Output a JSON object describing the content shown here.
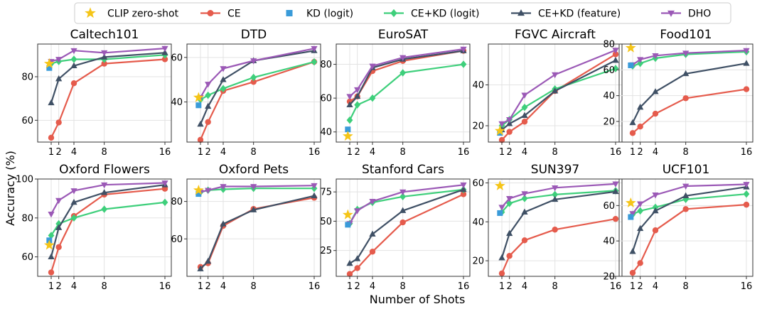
{
  "figure": {
    "ylabel": "Accuracy (%)",
    "xlabel": "Number of Shots",
    "x_ticks": [
      1,
      2,
      4,
      8,
      16
    ]
  },
  "legend": [
    {
      "key": "clip",
      "name": "CLIP zero-shot",
      "color": "#F5C518",
      "marker": "star"
    },
    {
      "key": "ce",
      "name": "CE",
      "color": "#E55B4C",
      "marker": "circle"
    },
    {
      "key": "kd",
      "name": "KD (logit)",
      "color": "#3A9BD9",
      "marker": "square"
    },
    {
      "key": "cekd",
      "name": "CE+KD (logit)",
      "color": "#3ECF7B",
      "marker": "diamond"
    },
    {
      "key": "cekdf",
      "name": "CE+KD (feature)",
      "color": "#3F5065",
      "marker": "triangle-up"
    },
    {
      "key": "dho",
      "name": "DHO",
      "color": "#9B59B6",
      "marker": "triangle-down"
    }
  ],
  "chart_data": [
    {
      "type": "line",
      "title": "Caltech101",
      "ylim": [
        50,
        95
      ],
      "yticks": [
        60,
        80
      ],
      "x": [
        1,
        2,
        4,
        8,
        16
      ],
      "clip": 86,
      "kd": 84,
      "series": {
        "ce": [
          52,
          59,
          77,
          86,
          88
        ],
        "cekd": [
          86,
          87,
          88,
          88,
          90
        ],
        "cekdf": [
          68,
          79,
          85,
          89,
          91
        ],
        "dho": [
          87,
          88,
          92,
          91,
          93
        ]
      }
    },
    {
      "type": "line",
      "title": "DTD",
      "ylim": [
        22,
        66
      ],
      "yticks": [
        40,
        60
      ],
      "x": [
        1,
        2,
        4,
        8,
        16
      ],
      "clip": 42,
      "kd": 38.5,
      "series": {
        "ce": [
          23,
          31,
          45,
          49,
          58
        ],
        "cekd": [
          41,
          43,
          46,
          51,
          58
        ],
        "cekdf": [
          30,
          38,
          50,
          58.5,
          63
        ],
        "dho": [
          42,
          48,
          55,
          58.5,
          64
        ]
      }
    },
    {
      "type": "line",
      "title": "EuroSAT",
      "ylim": [
        34,
        92
      ],
      "yticks": [
        40,
        60,
        80
      ],
      "x": [
        1,
        2,
        4,
        8,
        16
      ],
      "clip": 37.5,
      "kd": 41.5,
      "series": {
        "ce": [
          58,
          61,
          76,
          82,
          88
        ],
        "cekd": [
          47,
          56,
          60,
          75,
          80
        ],
        "cekdf": [
          56,
          61,
          78,
          83,
          88
        ],
        "dho": [
          61,
          65,
          79,
          84,
          89
        ]
      }
    },
    {
      "type": "line",
      "title": "FGVC Aircraft",
      "ylim": [
        12,
        60
      ],
      "yticks": [
        20,
        40
      ],
      "x": [
        1,
        2,
        4,
        8,
        16
      ],
      "clip": 17.5,
      "kd": 16.5,
      "series": {
        "ce": [
          13,
          17,
          22,
          37,
          55
        ],
        "cekd": [
          20,
          23,
          29,
          38,
          48
        ],
        "cekdf": [
          18,
          21,
          25,
          37,
          52
        ],
        "dho": [
          21,
          23,
          35,
          45,
          57
        ]
      }
    },
    {
      "type": "line",
      "title": "Food101",
      "ylim": [
        4,
        80
      ],
      "yticks": [
        20,
        40,
        60,
        80
      ],
      "x": [
        1,
        2,
        4,
        8,
        16
      ],
      "clip": 77,
      "kd": 63.5,
      "series": {
        "ce": [
          11,
          16,
          26,
          38,
          45
        ],
        "cekd": [
          63,
          65,
          69,
          72,
          74
        ],
        "cekdf": [
          19,
          31,
          43,
          57,
          65
        ],
        "dho": [
          64,
          68,
          71,
          73,
          75
        ]
      }
    },
    {
      "type": "line",
      "title": "Oxford Flowers",
      "ylim": [
        50,
        100
      ],
      "yticks": [
        60,
        80,
        100
      ],
      "x": [
        1,
        2,
        4,
        8,
        16
      ],
      "clip": 66,
      "kd": 68.5,
      "series": {
        "ce": [
          52,
          65,
          81,
          92,
          95
        ],
        "cekd": [
          71,
          77,
          80,
          84.5,
          88
        ],
        "cekdf": [
          60,
          75,
          88,
          93,
          97
        ],
        "dho": [
          82,
          89,
          94,
          97,
          98
        ]
      }
    },
    {
      "type": "line",
      "title": "Oxford Pets",
      "ylim": [
        40,
        92
      ],
      "yticks": [
        60,
        80
      ],
      "x": [
        1,
        2,
        4,
        8,
        16
      ],
      "clip": 86,
      "kd": 84,
      "series": {
        "ce": [
          45,
          47,
          67,
          76,
          82
        ],
        "cekd": [
          85,
          86,
          86.5,
          87,
          87
        ],
        "cekdf": [
          44,
          48,
          68,
          75.5,
          83
        ],
        "dho": [
          85,
          86,
          88,
          88,
          88.5
        ]
      }
    },
    {
      "type": "line",
      "title": "Stanford Cars",
      "ylim": [
        3,
        86
      ],
      "yticks": [
        25,
        50,
        75
      ],
      "x": [
        1,
        2,
        4,
        8,
        16
      ],
      "clip": 55.5,
      "kd": 47,
      "series": {
        "ce": [
          5,
          10,
          24,
          49,
          73
        ],
        "cekd": [
          48,
          60,
          66,
          71,
          77
        ],
        "cekdf": [
          14,
          18,
          39,
          59,
          77
        ],
        "dho": [
          48,
          59,
          67,
          75,
          81
        ]
      }
    },
    {
      "type": "line",
      "title": "SUN397",
      "ylim": [
        12,
        62
      ],
      "yticks": [
        20,
        40,
        60
      ],
      "x": [
        1,
        2,
        4,
        8,
        16
      ],
      "clip": 58.5,
      "kd": 44.5,
      "series": {
        "ce": [
          13.5,
          22.5,
          30.5,
          36,
          41.5
        ],
        "cekd": [
          45,
          49.5,
          52,
          54,
          56
        ],
        "cekdf": [
          21.5,
          34,
          45,
          51.5,
          55.5
        ],
        "dho": [
          47.5,
          52,
          54.5,
          57.5,
          59.5
        ]
      }
    },
    {
      "type": "line",
      "title": "UCF101",
      "ylim": [
        20,
        75
      ],
      "yticks": [
        20,
        40,
        60
      ],
      "x": [
        1,
        2,
        4,
        8,
        16
      ],
      "clip": 61.5,
      "kd": 53.5,
      "series": {
        "ce": [
          22,
          27.5,
          46,
          58,
          60.5
        ],
        "cekd": [
          55,
          57,
          59,
          63.5,
          66.5
        ],
        "cekdf": [
          34,
          47,
          57,
          65.5,
          70.5
        ],
        "dho": [
          55.5,
          61,
          66,
          71,
          72
        ]
      }
    }
  ]
}
